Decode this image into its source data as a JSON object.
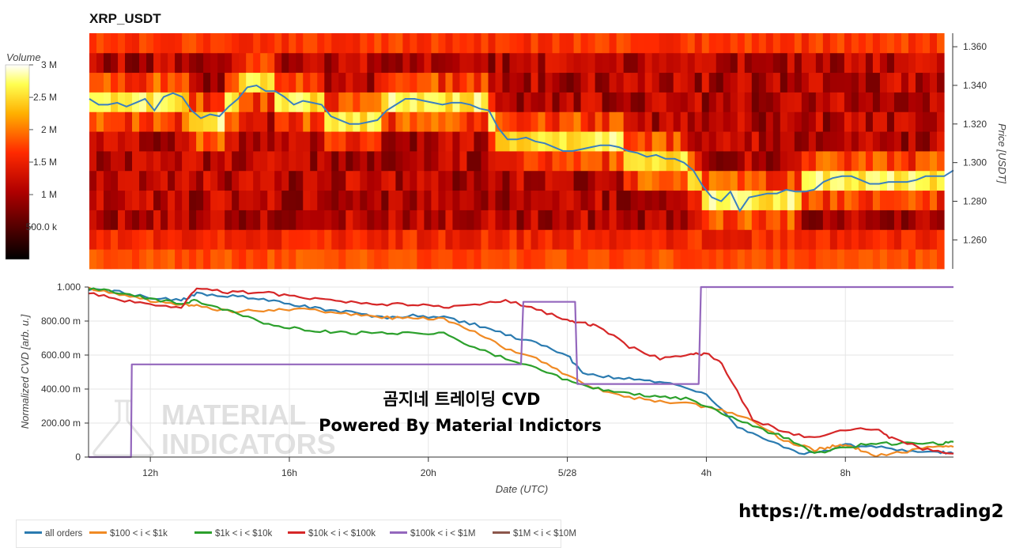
{
  "heatmap": {
    "title": "XRP_USDT",
    "colorbar_label": "Volume",
    "colorbar_ticks": [
      "3 M",
      "2.5 M",
      "2 M",
      "1.5 M",
      "1 M",
      "500.0 k"
    ],
    "y_axis_label": "Price [USDT]",
    "y_ticks": [
      "1.360",
      "1.340",
      "1.320",
      "1.300",
      "1.280",
      "1.260"
    ],
    "line_color": "#3a7fc0"
  },
  "chart_data": [
    {
      "type": "heatmap",
      "title": "XRP_USDT",
      "ylabel": "Price [USDT]",
      "colorbar": "Volume",
      "ylim": [
        1.245,
        1.367
      ],
      "price_line": [
        [
          0,
          1.333
        ],
        [
          2,
          1.33
        ],
        [
          4,
          1.33
        ],
        [
          6,
          1.331
        ],
        [
          8,
          1.329
        ],
        [
          10,
          1.331
        ],
        [
          12,
          1.333
        ],
        [
          14,
          1.327
        ],
        [
          16,
          1.334
        ],
        [
          18,
          1.336
        ],
        [
          20,
          1.334
        ],
        [
          22,
          1.327
        ],
        [
          24,
          1.323
        ],
        [
          26,
          1.325
        ],
        [
          28,
          1.324
        ],
        [
          30,
          1.329
        ],
        [
          32,
          1.333
        ],
        [
          34,
          1.339
        ],
        [
          36,
          1.34
        ],
        [
          38,
          1.337
        ],
        [
          40,
          1.337
        ],
        [
          42,
          1.334
        ],
        [
          44,
          1.33
        ],
        [
          46,
          1.332
        ],
        [
          48,
          1.331
        ],
        [
          50,
          1.33
        ],
        [
          52,
          1.324
        ],
        [
          54,
          1.322
        ],
        [
          56,
          1.32
        ],
        [
          58,
          1.32
        ],
        [
          60,
          1.321
        ],
        [
          62,
          1.322
        ],
        [
          64,
          1.327
        ],
        [
          66,
          1.33
        ],
        [
          68,
          1.333
        ],
        [
          70,
          1.333
        ],
        [
          72,
          1.332
        ],
        [
          74,
          1.331
        ],
        [
          76,
          1.33
        ],
        [
          78,
          1.331
        ],
        [
          80,
          1.331
        ],
        [
          82,
          1.33
        ],
        [
          84,
          1.328
        ],
        [
          86,
          1.327
        ],
        [
          88,
          1.318
        ],
        [
          90,
          1.312
        ],
        [
          92,
          1.312
        ],
        [
          94,
          1.313
        ],
        [
          96,
          1.311
        ],
        [
          98,
          1.31
        ],
        [
          100,
          1.308
        ],
        [
          102,
          1.306
        ],
        [
          104,
          1.306
        ],
        [
          106,
          1.307
        ],
        [
          108,
          1.308
        ],
        [
          110,
          1.309
        ],
        [
          112,
          1.309
        ],
        [
          114,
          1.308
        ],
        [
          116,
          1.306
        ],
        [
          118,
          1.305
        ],
        [
          120,
          1.303
        ],
        [
          122,
          1.304
        ],
        [
          124,
          1.302
        ],
        [
          126,
          1.302
        ],
        [
          128,
          1.3
        ],
        [
          130,
          1.296
        ],
        [
          132,
          1.288
        ],
        [
          134,
          1.282
        ],
        [
          136,
          1.28
        ],
        [
          138,
          1.285
        ],
        [
          140,
          1.275
        ],
        [
          142,
          1.282
        ],
        [
          144,
          1.283
        ],
        [
          146,
          1.284
        ],
        [
          148,
          1.284
        ],
        [
          150,
          1.286
        ],
        [
          152,
          1.285
        ],
        [
          154,
          1.285
        ],
        [
          156,
          1.286
        ],
        [
          158,
          1.29
        ],
        [
          160,
          1.292
        ],
        [
          162,
          1.293
        ],
        [
          164,
          1.293
        ],
        [
          166,
          1.291
        ],
        [
          168,
          1.289
        ],
        [
          170,
          1.289
        ],
        [
          172,
          1.29
        ],
        [
          174,
          1.29
        ],
        [
          176,
          1.29
        ],
        [
          178,
          1.291
        ],
        [
          180,
          1.293
        ],
        [
          182,
          1.293
        ],
        [
          184,
          1.293
        ],
        [
          186,
          1.296
        ]
      ]
    },
    {
      "type": "line",
      "xlabel": "Date (UTC)",
      "ylabel": "Normalized CVD [arb. u.]",
      "ylim": [
        0,
        1.0
      ],
      "y_ticks": [
        "0",
        "200.00 m",
        "400.00 m",
        "600.00 m",
        "800.00 m",
        "1.000"
      ],
      "x_ticks": [
        "12h",
        "16h",
        "20h",
        "5/28",
        "4h",
        "8h"
      ],
      "series": [
        {
          "name": "all orders",
          "color": "#2b7bb0",
          "points": [
            [
              0,
              0.99
            ],
            [
              4,
              0.97
            ],
            [
              8,
              0.94
            ],
            [
              12,
              0.92
            ],
            [
              14,
              0.96
            ],
            [
              18,
              0.95
            ],
            [
              22,
              0.93
            ],
            [
              26,
              0.9
            ],
            [
              30,
              0.87
            ],
            [
              34,
              0.85
            ],
            [
              38,
              0.82
            ],
            [
              42,
              0.83
            ],
            [
              46,
              0.82
            ],
            [
              50,
              0.78
            ],
            [
              54,
              0.72
            ],
            [
              58,
              0.67
            ],
            [
              62,
              0.6
            ],
            [
              64,
              0.49
            ],
            [
              68,
              0.47
            ],
            [
              72,
              0.45
            ],
            [
              76,
              0.43
            ],
            [
              80,
              0.37
            ],
            [
              84,
              0.18
            ],
            [
              88,
              0.1
            ],
            [
              92,
              0.02
            ],
            [
              96,
              0.04
            ],
            [
              98,
              0.07
            ],
            [
              102,
              0.06
            ],
            [
              106,
              0.04
            ],
            [
              110,
              0.03
            ],
            [
              112,
              0.02
            ]
          ]
        },
        {
          "name": "$100 < i < $1k",
          "color": "#f08a24",
          "points": [
            [
              0,
              0.99
            ],
            [
              4,
              0.96
            ],
            [
              8,
              0.92
            ],
            [
              12,
              0.9
            ],
            [
              14,
              0.89
            ],
            [
              18,
              0.86
            ],
            [
              22,
              0.86
            ],
            [
              26,
              0.87
            ],
            [
              30,
              0.86
            ],
            [
              34,
              0.84
            ],
            [
              38,
              0.82
            ],
            [
              42,
              0.82
            ],
            [
              46,
              0.81
            ],
            [
              50,
              0.74
            ],
            [
              54,
              0.64
            ],
            [
              58,
              0.58
            ],
            [
              62,
              0.48
            ],
            [
              66,
              0.4
            ],
            [
              70,
              0.35
            ],
            [
              74,
              0.33
            ],
            [
              78,
              0.31
            ],
            [
              82,
              0.28
            ],
            [
              86,
              0.21
            ],
            [
              90,
              0.1
            ],
            [
              94,
              0.04
            ],
            [
              96,
              0.06
            ],
            [
              98,
              0.07
            ],
            [
              100,
              0.04
            ],
            [
              102,
              0.01
            ],
            [
              106,
              0.03
            ],
            [
              110,
              0.07
            ],
            [
              112,
              0.06
            ]
          ]
        },
        {
          "name": "$1k < i < $10k",
          "color": "#2ca02c",
          "points": [
            [
              0,
              0.99
            ],
            [
              4,
              0.97
            ],
            [
              8,
              0.93
            ],
            [
              12,
              0.9
            ],
            [
              14,
              0.92
            ],
            [
              18,
              0.86
            ],
            [
              22,
              0.8
            ],
            [
              26,
              0.76
            ],
            [
              30,
              0.74
            ],
            [
              34,
              0.73
            ],
            [
              38,
              0.73
            ],
            [
              42,
              0.73
            ],
            [
              46,
              0.73
            ],
            [
              50,
              0.64
            ],
            [
              54,
              0.58
            ],
            [
              58,
              0.52
            ],
            [
              62,
              0.45
            ],
            [
              66,
              0.4
            ],
            [
              70,
              0.37
            ],
            [
              74,
              0.36
            ],
            [
              78,
              0.34
            ],
            [
              82,
              0.26
            ],
            [
              86,
              0.18
            ],
            [
              90,
              0.12
            ],
            [
              94,
              0.02
            ],
            [
              98,
              0.06
            ],
            [
              102,
              0.08
            ],
            [
              106,
              0.08
            ],
            [
              110,
              0.08
            ],
            [
              112,
              0.09
            ]
          ]
        },
        {
          "name": "$10k < i < $100k",
          "color": "#d62728",
          "points": [
            [
              0,
              0.97
            ],
            [
              4,
              0.92
            ],
            [
              8,
              0.9
            ],
            [
              12,
              0.88
            ],
            [
              14,
              0.99
            ],
            [
              18,
              0.97
            ],
            [
              22,
              0.97
            ],
            [
              26,
              0.95
            ],
            [
              30,
              0.93
            ],
            [
              34,
              0.91
            ],
            [
              38,
              0.9
            ],
            [
              42,
              0.9
            ],
            [
              46,
              0.88
            ],
            [
              50,
              0.89
            ],
            [
              54,
              0.92
            ],
            [
              58,
              0.87
            ],
            [
              62,
              0.8
            ],
            [
              64,
              0.79
            ],
            [
              66,
              0.77
            ],
            [
              70,
              0.65
            ],
            [
              74,
              0.58
            ],
            [
              78,
              0.6
            ],
            [
              80,
              0.61
            ],
            [
              82,
              0.55
            ],
            [
              86,
              0.22
            ],
            [
              90,
              0.15
            ],
            [
              94,
              0.11
            ],
            [
              98,
              0.16
            ],
            [
              102,
              0.17
            ],
            [
              104,
              0.11
            ],
            [
              108,
              0.05
            ],
            [
              112,
              0.02
            ]
          ]
        },
        {
          "name": "$100k < i < $1M",
          "color": "#9467bd",
          "points": [
            [
              0,
              0.0
            ],
            [
              5.5,
              0.0
            ],
            [
              5.6,
              0.545
            ],
            [
              50,
              0.545
            ],
            [
              56,
              0.545
            ],
            [
              56.3,
              0.913
            ],
            [
              63,
              0.913
            ],
            [
              63.3,
              0.43
            ],
            [
              79,
              0.43
            ],
            [
              79.3,
              1.0
            ],
            [
              112,
              1.0
            ]
          ]
        },
        {
          "name": "$1M < i < $10M",
          "color": "#8c564b",
          "points": []
        }
      ]
    }
  ],
  "watermark": {
    "line1": "MATERIAL",
    "line2": "INDICATORS"
  },
  "overlay": {
    "line1": "곰지네 트레이딩 CVD",
    "line2": "Powered By Material Indictors"
  },
  "url": "https://t.me/oddstrading2",
  "legend": [
    {
      "label": "all orders",
      "color": "#2b7bb0"
    },
    {
      "label": "$100 < i < $1k",
      "color": "#f08a24"
    },
    {
      "label": "$1k < i < $10k",
      "color": "#2ca02c"
    },
    {
      "label": "$10k < i < $100k",
      "color": "#d62728"
    },
    {
      "label": "$100k < i < $1M",
      "color": "#9467bd"
    },
    {
      "label": "$1M < i < $10M",
      "color": "#8c564b"
    }
  ]
}
